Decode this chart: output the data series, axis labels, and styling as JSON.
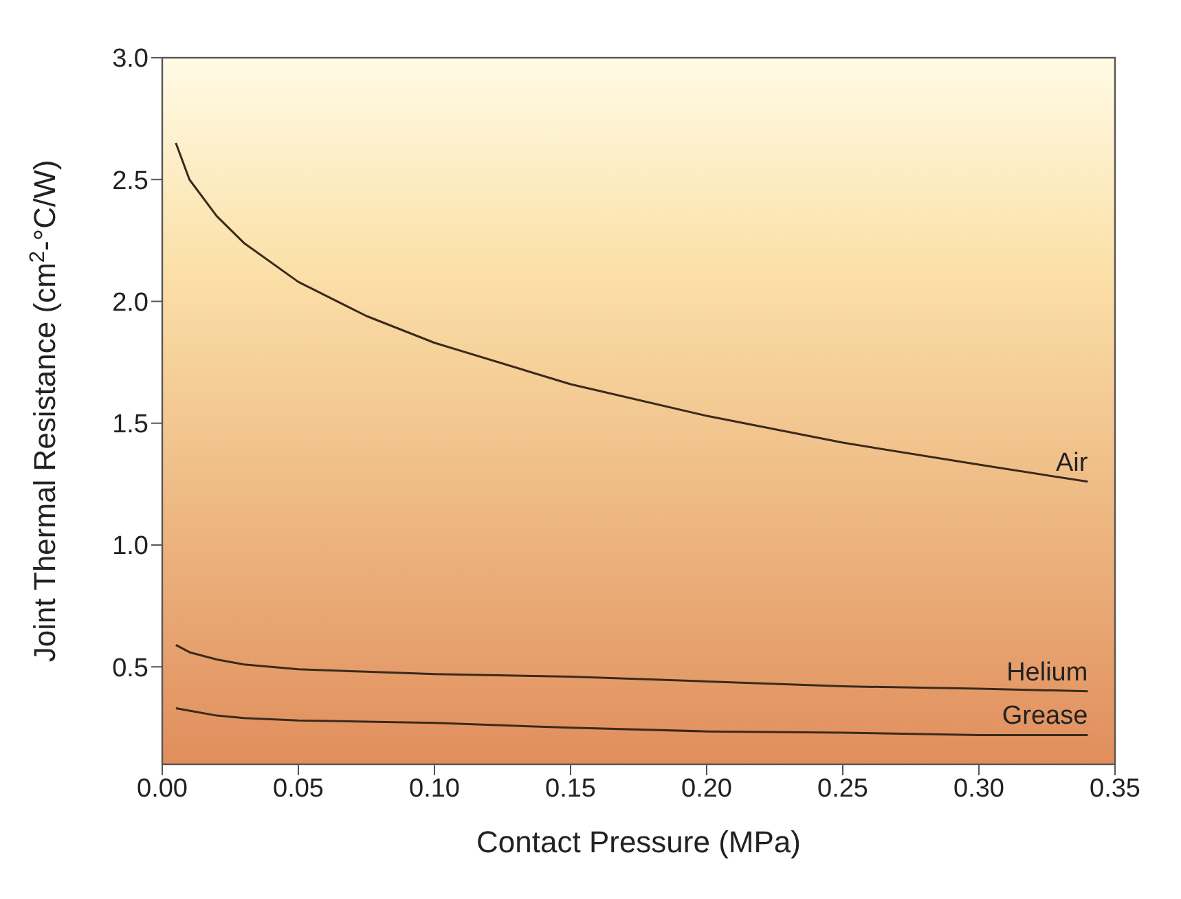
{
  "chart_data": {
    "type": "line",
    "xlabel": "Contact Pressure (MPa)",
    "ylabel": "Joint Thermal Resistance (cm$^{2}$-°C/W)",
    "xlim": [
      0,
      0.35
    ],
    "xticks": [
      {
        "value": 0,
        "label": "0.00"
      },
      {
        "value": 0.05,
        "label": "0.05"
      },
      {
        "value": 0.1,
        "label": "0.10"
      },
      {
        "value": 0.15,
        "label": "0.15"
      },
      {
        "value": 0.2,
        "label": "0.20"
      },
      {
        "value": 0.25,
        "label": "0.25"
      },
      {
        "value": 0.3,
        "label": "0.30"
      },
      {
        "value": 0.35,
        "label": "0.35"
      }
    ],
    "ylim": [
      0.1,
      3.0
    ],
    "yticks": [
      {
        "value": 0.5,
        "label": "0.5"
      },
      {
        "value": 1,
        "label": "1.0"
      },
      {
        "value": 1.5,
        "label": "1.5"
      },
      {
        "value": 2,
        "label": "2.0"
      },
      {
        "value": 2.5,
        "label": "2.5"
      },
      {
        "value": 3,
        "label": "3.0"
      }
    ],
    "legend": false,
    "marker": "none",
    "line_style": "solid",
    "x": [
      0.005,
      0.01,
      0.02,
      0.03,
      0.05,
      0.075,
      0.1,
      0.15,
      0.2,
      0.25,
      0.3,
      0.34
    ],
    "series": [
      {
        "name": "Air",
        "color": "#3a2a1a",
        "values": [
          2.65,
          2.5,
          2.35,
          2.24,
          2.08,
          1.94,
          1.83,
          1.66,
          1.53,
          1.42,
          1.33,
          1.26
        ]
      },
      {
        "name": "Helium",
        "color": "#3a2a1a",
        "values": [
          0.59,
          0.56,
          0.53,
          0.51,
          0.49,
          0.48,
          0.47,
          0.46,
          0.44,
          0.42,
          0.41,
          0.4
        ]
      },
      {
        "name": "Grease",
        "color": "#3a2a1a",
        "values": [
          0.33,
          0.32,
          0.3,
          0.29,
          0.28,
          0.275,
          0.27,
          0.25,
          0.235,
          0.23,
          0.22,
          0.22
        ]
      }
    ]
  }
}
